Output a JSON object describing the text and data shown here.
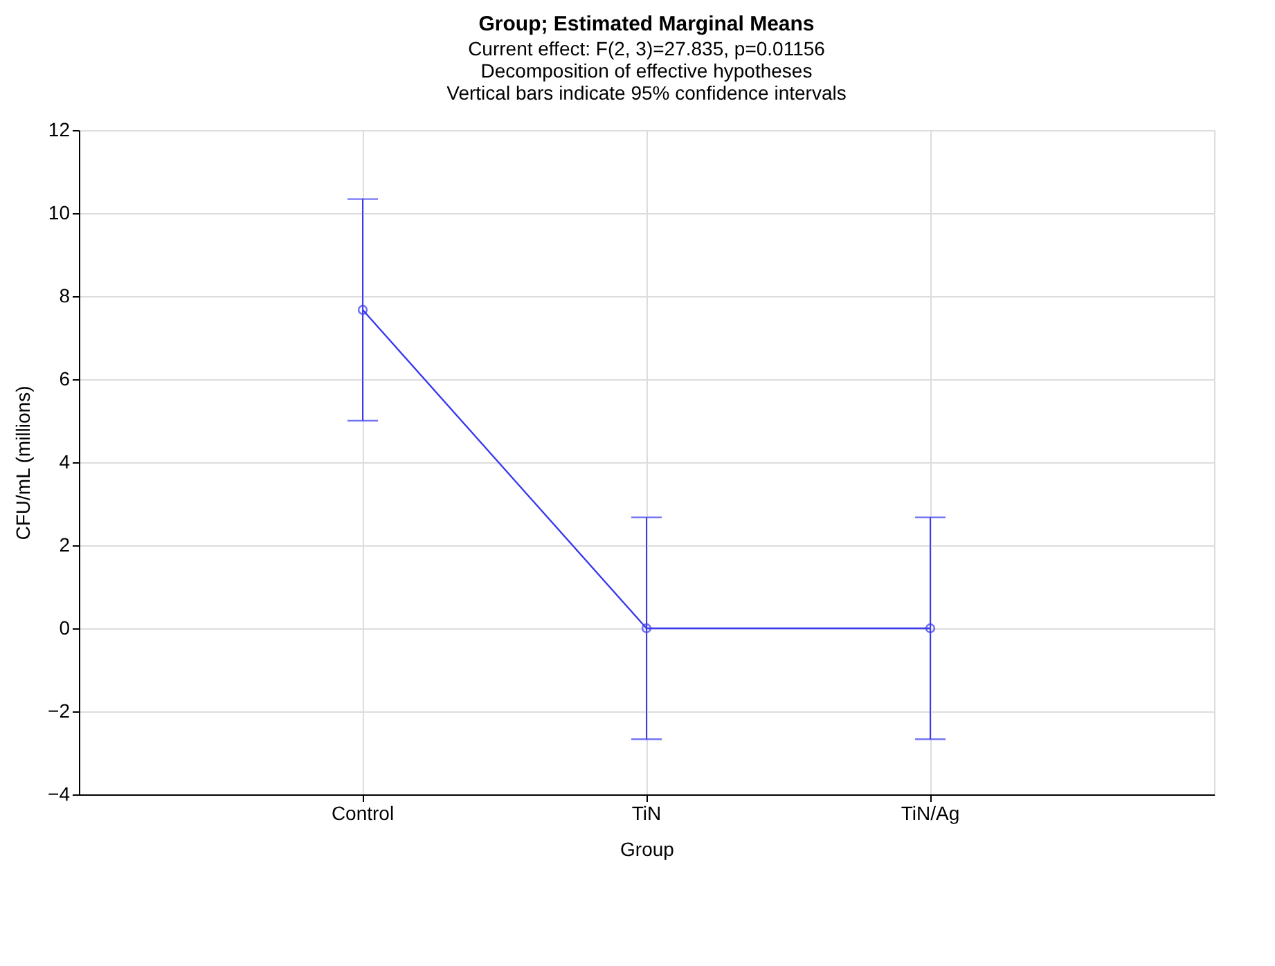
{
  "chart_data": {
    "type": "line",
    "title": "Group; Estimated Marginal Means",
    "subtitle": "Current effect: F(2, 3)=27.835, p=0.01156\nDecomposition of effective hypotheses\nVertical bars indicate 95% confidence intervals",
    "xlabel": "Group",
    "ylabel": "CFU/mL (millions)",
    "categories": [
      "Control",
      "TiN",
      "TiN/Ag"
    ],
    "series": [
      {
        "color": "#3a3af0",
        "values": [
          7.67,
          0,
          0
        ],
        "errors": [
          2.67,
          2.67,
          2.67
        ]
      }
    ],
    "ylim": [
      -4,
      12
    ],
    "yticks": [
      -4,
      -2,
      0,
      2,
      4,
      6,
      8,
      10,
      12
    ],
    "grid": true,
    "marker": "circle",
    "line_style": "solid"
  }
}
